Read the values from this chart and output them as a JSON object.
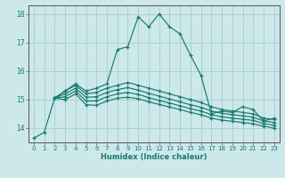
{
  "xlabel": "Humidex (Indice chaleur)",
  "xlim": [
    -0.5,
    23.5
  ],
  "ylim": [
    13.5,
    18.3
  ],
  "yticks": [
    14,
    15,
    16,
    17,
    18
  ],
  "xticks": [
    0,
    1,
    2,
    3,
    4,
    5,
    6,
    7,
    8,
    9,
    10,
    11,
    12,
    13,
    14,
    15,
    16,
    17,
    18,
    19,
    20,
    21,
    22,
    23
  ],
  "bg_color": "#cde8ea",
  "grid_color": "#afd0d3",
  "line_color": "#1a7a6e",
  "lines": [
    {
      "x": [
        0,
        1,
        2,
        3,
        4,
        5,
        6,
        7,
        8,
        9,
        10,
        11,
        12,
        13,
        14,
        15,
        16,
        17,
        18,
        19,
        20,
        21,
        22,
        23
      ],
      "y": [
        13.65,
        13.85,
        15.05,
        15.3,
        15.55,
        15.3,
        15.4,
        15.55,
        16.75,
        16.85,
        17.9,
        17.55,
        18.0,
        17.55,
        17.3,
        16.55,
        15.85,
        14.5,
        14.6,
        14.55,
        14.75,
        14.65,
        14.25,
        14.35
      ]
    },
    {
      "x": [
        2,
        3,
        4,
        5,
        6,
        7,
        8,
        9,
        10,
        11,
        12,
        13,
        14,
        15,
        16,
        17,
        18,
        19,
        20,
        21,
        22,
        23
      ],
      "y": [
        15.05,
        15.3,
        15.5,
        15.2,
        15.25,
        15.4,
        15.5,
        15.6,
        15.5,
        15.4,
        15.3,
        15.2,
        15.1,
        15.0,
        14.9,
        14.75,
        14.65,
        14.6,
        14.55,
        14.5,
        14.35,
        14.3
      ]
    },
    {
      "x": [
        2,
        3,
        4,
        5,
        6,
        7,
        8,
        9,
        10,
        11,
        12,
        13,
        14,
        15,
        16,
        17,
        18,
        19,
        20,
        21,
        22,
        23
      ],
      "y": [
        15.05,
        15.2,
        15.4,
        15.08,
        15.1,
        15.25,
        15.35,
        15.42,
        15.33,
        15.22,
        15.12,
        15.02,
        14.92,
        14.82,
        14.73,
        14.6,
        14.52,
        14.47,
        14.43,
        14.38,
        14.25,
        14.2
      ]
    },
    {
      "x": [
        2,
        3,
        4,
        5,
        6,
        7,
        8,
        9,
        10,
        11,
        12,
        13,
        14,
        15,
        16,
        17,
        18,
        19,
        20,
        21,
        22,
        23
      ],
      "y": [
        15.05,
        15.1,
        15.3,
        14.95,
        14.95,
        15.1,
        15.2,
        15.25,
        15.18,
        15.07,
        14.97,
        14.88,
        14.78,
        14.68,
        14.6,
        14.47,
        14.4,
        14.35,
        14.31,
        14.27,
        14.16,
        14.1
      ]
    },
    {
      "x": [
        2,
        3,
        4,
        5,
        6,
        7,
        8,
        9,
        10,
        11,
        12,
        13,
        14,
        15,
        16,
        17,
        18,
        19,
        20,
        21,
        22,
        23
      ],
      "y": [
        15.05,
        15.0,
        15.2,
        14.82,
        14.8,
        14.95,
        15.05,
        15.08,
        15.03,
        14.92,
        14.83,
        14.74,
        14.65,
        14.55,
        14.47,
        14.35,
        14.28,
        14.24,
        14.2,
        14.15,
        14.07,
        14.0
      ]
    }
  ]
}
